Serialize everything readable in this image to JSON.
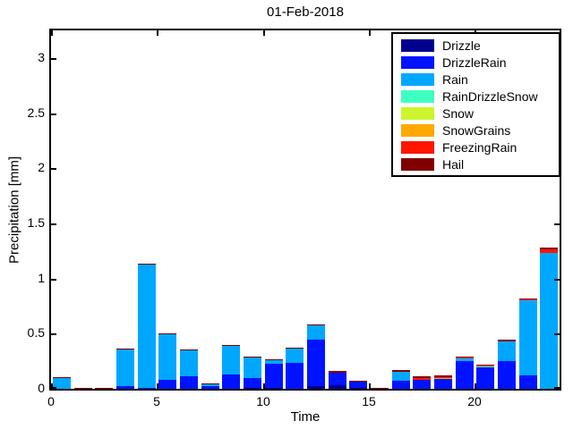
{
  "figure": {
    "title": "01-Feb-2018",
    "xlabel": "Time",
    "ylabel": "Precipitation [mm]"
  },
  "chart_data": {
    "type": "bar",
    "stacked": true,
    "title": "01-Feb-2018",
    "xlabel": "Time",
    "ylabel": "Precipitation [mm]",
    "grid": false,
    "legend_position": "upper-right",
    "xlim": [
      0,
      24
    ],
    "ylim": [
      0,
      3.25
    ],
    "xticks": [
      0,
      5,
      10,
      15,
      20
    ],
    "xtick_labels": [
      "0",
      "5",
      "10",
      "15",
      "20"
    ],
    "yticks": [
      0,
      0.5,
      1,
      1.5,
      2,
      2.5,
      3
    ],
    "ytick_labels": [
      "0",
      "0.5",
      "1",
      "1.5",
      "2",
      "2.5",
      "3"
    ],
    "x_hours": [
      0,
      1,
      2,
      3,
      4,
      5,
      6,
      7,
      8,
      9,
      10,
      11,
      12,
      13,
      14,
      15,
      16,
      17,
      18,
      19,
      20,
      21,
      22,
      23
    ],
    "bar_span_hours": 1,
    "bar_width_fraction": 0.85,
    "series": [
      {
        "name": "Drizzle",
        "color": "#00008F",
        "values": [
          0,
          0,
          0,
          0,
          0,
          0,
          0,
          0,
          0,
          0.008,
          0.005,
          0,
          0.024,
          0.034,
          0.012,
          0,
          0,
          0,
          0,
          0,
          0,
          0,
          0,
          0
        ]
      },
      {
        "name": "DrizzleRain",
        "color": "#0013FF",
        "values": [
          0,
          0,
          0,
          0.022,
          0.012,
          0.085,
          0.115,
          0.027,
          0.128,
          0.088,
          0.215,
          0.233,
          0.42,
          0.113,
          0.053,
          0,
          0.072,
          0.083,
          0.088,
          0.251,
          0.192,
          0.251,
          0.118,
          0
        ]
      },
      {
        "name": "Rain",
        "color": "#00A7FF",
        "values": [
          0.1,
          0,
          0,
          0.335,
          1.115,
          0.415,
          0.235,
          0.02,
          0.262,
          0.19,
          0.032,
          0.128,
          0.126,
          0,
          0,
          0,
          0.078,
          0,
          0,
          0.027,
          0,
          0.182,
          0.677,
          1.232
        ]
      },
      {
        "name": "RainDrizzleSnow",
        "color": "#3DFFC2",
        "values": [
          0,
          0,
          0,
          0,
          0,
          0,
          0,
          0,
          0,
          0,
          0,
          0,
          0,
          0,
          0,
          0,
          0,
          0,
          0,
          0,
          0.008,
          0,
          0,
          0
        ]
      },
      {
        "name": "Snow",
        "color": "#CCF52E",
        "values": [
          0,
          0,
          0,
          0,
          0,
          0,
          0,
          0,
          0,
          0,
          0,
          0,
          0,
          0,
          0,
          0,
          0,
          0,
          0,
          0,
          0,
          0,
          0,
          0
        ]
      },
      {
        "name": "SnowGrains",
        "color": "#FFA800",
        "values": [
          0,
          0,
          0,
          0,
          0,
          0,
          0,
          0,
          0,
          0,
          0,
          0,
          0,
          0,
          0,
          0,
          0,
          0,
          0.008,
          0,
          0,
          0,
          0,
          0
        ]
      },
      {
        "name": "FreezingRain",
        "color": "#FF1500",
        "values": [
          0,
          0,
          0,
          0,
          0,
          0,
          0,
          0,
          0,
          0,
          0,
          0,
          0,
          0,
          0,
          0,
          0,
          0.015,
          0.008,
          0.008,
          0.01,
          0,
          0.008,
          0.035
        ]
      },
      {
        "name": "Hail",
        "color": "#800000",
        "values": [
          0.012,
          0.008,
          0.008,
          0.012,
          0.01,
          0.01,
          0.01,
          0.005,
          0.01,
          0.01,
          0.01,
          0.01,
          0.01,
          0.016,
          0.01,
          0.01,
          0.015,
          0.02,
          0.014,
          0.009,
          0.012,
          0.016,
          0.01,
          0.014
        ]
      }
    ]
  }
}
